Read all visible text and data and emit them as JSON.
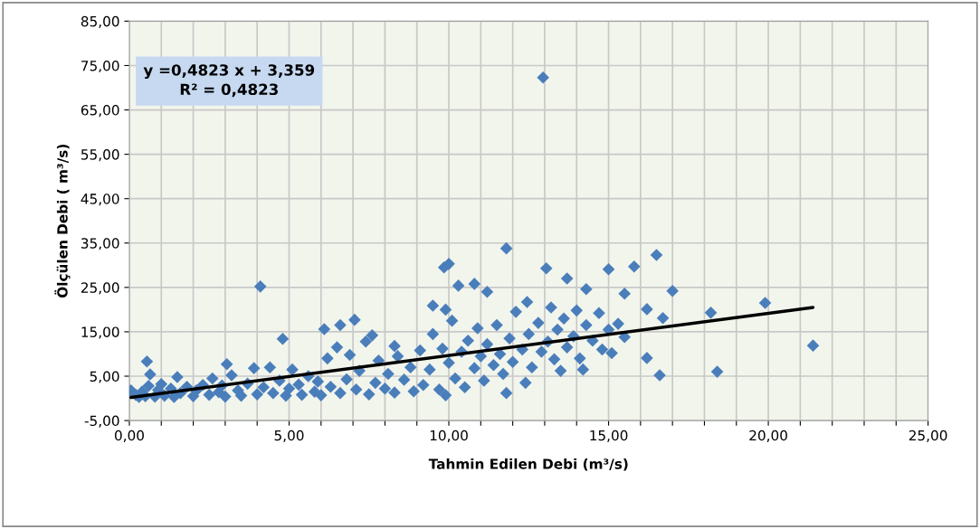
{
  "chart_data": {
    "type": "scatter",
    "xlabel": "Tahmin Edilen Debi (m³/s)",
    "ylabel": "Ölçülen Debi ( m³/s)",
    "annotations": [
      "y =0,4823 x + 3,359\nR² = 0,4823"
    ],
    "xlim": [
      0,
      25
    ],
    "ylim": [
      -5,
      85
    ],
    "xticks": [
      {
        "value": 0,
        "label": "0,00"
      },
      {
        "value": 1,
        "label": null
      },
      {
        "value": 2,
        "label": null
      },
      {
        "value": 3,
        "label": null
      },
      {
        "value": 4,
        "label": null
      },
      {
        "value": 5,
        "label": "5,00"
      },
      {
        "value": 6,
        "label": null
      },
      {
        "value": 7,
        "label": null
      },
      {
        "value": 8,
        "label": null
      },
      {
        "value": 9,
        "label": null
      },
      {
        "value": 10,
        "label": "10,00"
      },
      {
        "value": 11,
        "label": null
      },
      {
        "value": 12,
        "label": null
      },
      {
        "value": 13,
        "label": null
      },
      {
        "value": 14,
        "label": null
      },
      {
        "value": 15,
        "label": "15,00"
      },
      {
        "value": 16,
        "label": null
      },
      {
        "value": 17,
        "label": null
      },
      {
        "value": 18,
        "label": null
      },
      {
        "value": 19,
        "label": null
      },
      {
        "value": 20,
        "label": "20,00"
      },
      {
        "value": 21,
        "label": null
      },
      {
        "value": 22,
        "label": null
      },
      {
        "value": 23,
        "label": null
      },
      {
        "value": 24,
        "label": null
      },
      {
        "value": 25,
        "label": "25,00"
      }
    ],
    "yticks": [
      {
        "value": -5,
        "label": "-5,00"
      },
      {
        "value": 5,
        "label": "5,00"
      },
      {
        "value": 15,
        "label": "15,00"
      },
      {
        "value": 25,
        "label": "25,00"
      },
      {
        "value": 35,
        "label": "35,00"
      },
      {
        "value": 45,
        "label": "45,00"
      },
      {
        "value": 55,
        "label": "55,00"
      },
      {
        "value": 65,
        "label": "65,00"
      },
      {
        "value": 75,
        "label": "75,00"
      },
      {
        "value": 85,
        "label": "85,00"
      }
    ],
    "grid": true,
    "legend": false,
    "series": [
      {
        "color": "#4a7ebb",
        "marker": "diamond",
        "x": [
          0.05,
          0.1,
          0.2,
          0.3,
          0.4,
          0.5,
          0.6,
          0.8,
          0.9,
          1.0,
          1.1,
          1.3,
          1.4,
          1.5,
          1.6,
          1.8,
          2.0,
          2.1,
          2.3,
          2.5,
          2.6,
          2.8,
          2.9,
          3.0,
          3.2,
          3.4,
          3.5,
          3.7,
          3.9,
          4.0,
          4.2,
          4.4,
          4.5,
          4.7,
          4.9,
          5.0,
          5.1,
          5.3,
          5.4,
          5.6,
          5.8,
          5.9,
          6.0,
          6.2,
          6.3,
          6.5,
          6.6,
          6.8,
          6.9,
          7.1,
          7.2,
          7.4,
          7.5,
          7.7,
          7.8,
          8.0,
          8.1,
          8.3,
          8.4,
          8.6,
          8.8,
          8.9,
          9.1,
          9.2,
          9.4,
          9.5,
          9.7,
          9.8,
          9.9,
          10.0,
          10.1,
          10.2,
          10.4,
          10.5,
          10.6,
          10.8,
          10.9,
          11.0,
          11.1,
          11.2,
          11.4,
          11.5,
          11.6,
          11.7,
          11.8,
          11.9,
          12.0,
          12.1,
          12.3,
          12.4,
          12.5,
          12.6,
          12.8,
          12.9,
          13.1,
          13.2,
          13.3,
          13.4,
          13.5,
          13.6,
          13.7,
          13.9,
          14.0,
          14.1,
          14.2,
          14.3,
          14.5,
          14.7,
          14.8,
          15.0,
          15.1,
          15.3,
          15.5,
          12.95,
          4.1,
          11.8,
          10.0,
          9.85,
          13.05,
          16.5,
          15.8,
          15.0,
          13.7,
          10.3,
          10.8,
          11.2,
          12.45,
          9.5,
          9.9,
          17.0,
          15.5,
          14.3,
          18.2,
          19.9,
          21.4,
          18.4,
          16.6,
          16.2,
          16.7,
          16.2,
          6.1,
          4.8,
          7.05,
          6.6,
          0.55,
          0.65,
          3.05,
          7.6,
          8.3
        ],
        "values": [
          1.8,
          1.2,
          0.8,
          0.3,
          1.5,
          0.5,
          2.8,
          0.4,
          1.9,
          3.2,
          0.6,
          2.2,
          0.3,
          4.8,
          1.2,
          2.6,
          0.5,
          1.8,
          3.0,
          0.8,
          4.5,
          1.4,
          2.9,
          0.4,
          5.2,
          1.8,
          0.6,
          3.3,
          6.8,
          0.9,
          2.5,
          7.0,
          1.2,
          4.0,
          0.6,
          2.2,
          6.5,
          3.1,
          0.8,
          5.0,
          1.5,
          3.8,
          0.7,
          9.0,
          2.6,
          11.5,
          1.2,
          4.3,
          9.8,
          2.0,
          6.2,
          12.8,
          0.9,
          3.5,
          8.5,
          2.2,
          5.5,
          1.3,
          9.5,
          4.2,
          7.0,
          1.6,
          10.8,
          3.0,
          6.5,
          14.5,
          2.0,
          11.2,
          0.7,
          8.0,
          17.5,
          4.5,
          10.5,
          2.5,
          13.0,
          6.8,
          15.8,
          9.5,
          4.0,
          12.2,
          7.5,
          16.5,
          10.0,
          5.5,
          1.2,
          13.5,
          8.2,
          19.5,
          11.0,
          3.5,
          14.5,
          7.0,
          17.0,
          10.5,
          12.8,
          20.5,
          8.8,
          15.5,
          6.2,
          18.0,
          11.5,
          14.0,
          19.8,
          9.0,
          6.5,
          16.5,
          13.0,
          19.2,
          11.0,
          15.5,
          10.2,
          16.8,
          13.8,
          72.3,
          25.2,
          33.8,
          30.3,
          29.5,
          29.3,
          32.3,
          29.7,
          29.1,
          27.0,
          25.4,
          25.8,
          24.0,
          21.7,
          20.9,
          20.0,
          24.2,
          23.6,
          24.6,
          19.3,
          21.5,
          11.9,
          6.0,
          5.2,
          9.1,
          18.1,
          20.1,
          15.6,
          13.4,
          17.7,
          16.5,
          8.3,
          5.4,
          7.7,
          14.2,
          11.8
        ]
      },
      {
        "type": "line",
        "color": "#000000",
        "marker": "none",
        "line_style": "solid",
        "x": [
          0.05,
          21.4
        ],
        "values": [
          0.2,
          20.5
        ]
      }
    ]
  }
}
